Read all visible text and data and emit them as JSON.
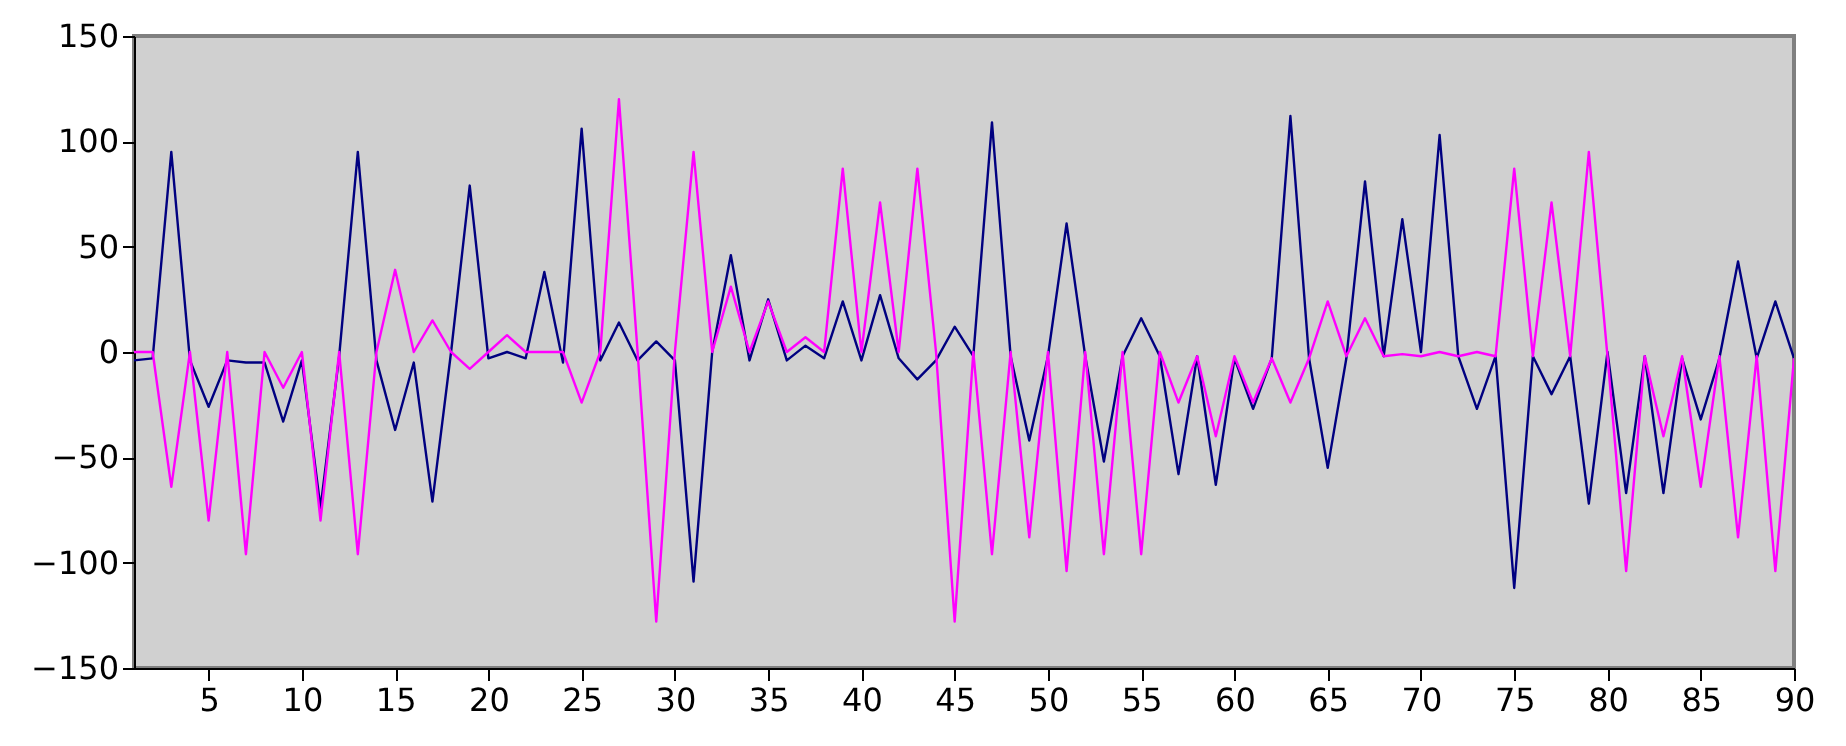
{
  "chart_data": {
    "type": "line",
    "x": [
      1,
      2,
      3,
      4,
      5,
      6,
      7,
      8,
      9,
      10,
      11,
      12,
      13,
      14,
      15,
      16,
      17,
      18,
      19,
      20,
      21,
      22,
      23,
      24,
      25,
      26,
      27,
      28,
      29,
      30,
      31,
      32,
      33,
      34,
      35,
      36,
      37,
      38,
      39,
      40,
      41,
      42,
      43,
      44,
      45,
      46,
      47,
      48,
      49,
      50,
      51,
      52,
      53,
      54,
      55,
      56,
      57,
      58,
      59,
      60,
      61,
      62,
      63,
      64,
      65,
      66,
      67,
      68,
      69,
      70,
      71,
      72,
      73,
      74,
      75,
      76,
      77,
      78,
      79,
      80,
      81,
      82,
      83,
      84,
      85,
      86,
      87,
      88,
      89,
      90
    ],
    "series": [
      {
        "color": "#000080",
        "values": [
          -4,
          -3,
          95,
          -4,
          -26,
          -4,
          -5,
          -5,
          -33,
          -4,
          -74,
          -2,
          95,
          -4,
          -37,
          -5,
          -71,
          0,
          79,
          -3,
          0,
          -3,
          38,
          -5,
          106,
          -4,
          14,
          -4,
          5,
          -4,
          -109,
          0,
          46,
          -4,
          25,
          -4,
          3,
          -3,
          24,
          -4,
          27,
          -3,
          -13,
          -4,
          12,
          -2,
          109,
          -2,
          -42,
          -2,
          61,
          -2,
          -52,
          -2,
          16,
          -2,
          -58,
          -2,
          -63,
          -3,
          -27,
          -3,
          112,
          -3,
          -55,
          -3,
          81,
          -2,
          63,
          0,
          103,
          -2,
          -27,
          -2,
          -112,
          -2,
          -20,
          -2,
          -72,
          0,
          -67,
          -2,
          -67,
          -3,
          -32,
          -3,
          43,
          -3,
          24,
          -3
        ]
      },
      {
        "color": "#ff00ff",
        "values": [
          0,
          0,
          -64,
          0,
          -80,
          0,
          -96,
          0,
          -17,
          0,
          -80,
          0,
          -96,
          0,
          39,
          0,
          15,
          0,
          -8,
          0,
          8,
          0,
          0,
          0,
          -24,
          0,
          120,
          0,
          -128,
          0,
          95,
          0,
          31,
          0,
          24,
          0,
          7,
          0,
          87,
          0,
          71,
          0,
          87,
          0,
          -128,
          0,
          -96,
          0,
          -88,
          0,
          -104,
          0,
          -96,
          0,
          -96,
          0,
          -24,
          -2,
          -40,
          -2,
          -24,
          -3,
          -24,
          -3,
          24,
          -2,
          16,
          -2,
          -1,
          -2,
          0,
          -2,
          0,
          -2,
          87,
          -2,
          71,
          -2,
          95,
          -2,
          -104,
          -2,
          -40,
          -2,
          -64,
          -2,
          -88,
          -2,
          -104,
          -3
        ]
      }
    ],
    "xlim": [
      1,
      90
    ],
    "xticks": [
      5,
      10,
      15,
      20,
      25,
      30,
      35,
      40,
      45,
      50,
      55,
      60,
      65,
      70,
      75,
      80,
      85,
      90
    ],
    "ylim": [
      -150,
      150
    ],
    "yticks": [
      -150,
      -100,
      -50,
      0,
      50,
      100,
      150
    ],
    "line_style": "solid"
  }
}
